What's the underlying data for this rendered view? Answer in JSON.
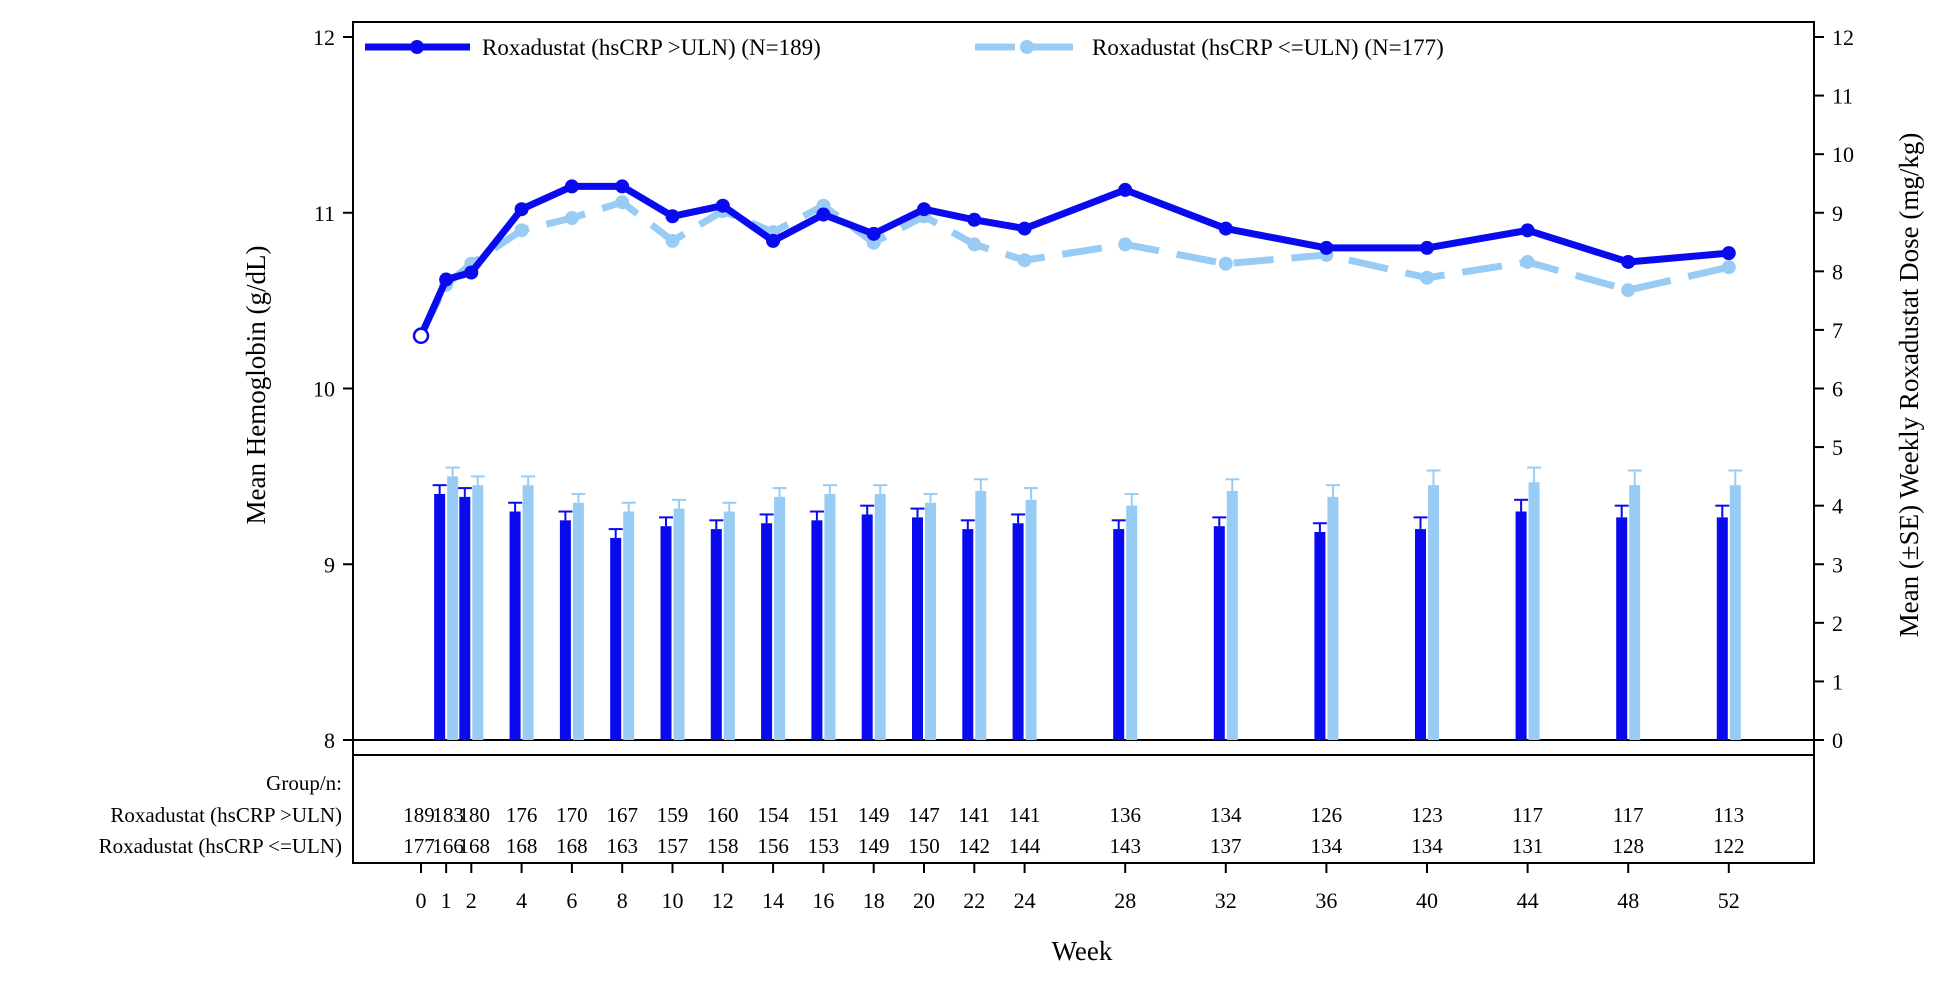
{
  "chart_data": {
    "type": "line",
    "combined_with": "bar",
    "x": [
      0,
      1,
      2,
      4,
      6,
      8,
      10,
      12,
      14,
      16,
      18,
      20,
      22,
      24,
      28,
      32,
      36,
      40,
      44,
      48,
      52
    ],
    "x_tick_labels": [
      "0",
      "1",
      "2",
      "4",
      "6",
      "8",
      "10",
      "12",
      "14",
      "16",
      "18",
      "20",
      "22",
      "24",
      "28",
      "32",
      "36",
      "40",
      "44",
      "48",
      "52"
    ],
    "xlabel": "Week",
    "ylabel_left": "Mean Hemoglobin (g/dL)",
    "ylabel_right": "Mean (±SE) Weekly Roxadustat Dose (mg/kg)",
    "ylim_left": [
      8,
      12
    ],
    "ylim_right": [
      0,
      12
    ],
    "y_ticks_left": [
      "8",
      "9",
      "10",
      "11",
      "12"
    ],
    "y_ticks_right": [
      "0",
      "1",
      "2",
      "3",
      "4",
      "5",
      "6",
      "7",
      "8",
      "9",
      "10",
      "11",
      "12"
    ],
    "legend_position": "top",
    "series": [
      {
        "name": "Roxadustat (hsCRP >ULN) (N=189)",
        "color": "#0a0aee",
        "line_style": "solid",
        "hemoglobin": [
          10.3,
          10.62,
          10.66,
          11.02,
          11.15,
          11.15,
          10.98,
          11.04,
          10.84,
          10.99,
          10.88,
          11.02,
          10.96,
          10.91,
          11.13,
          10.91,
          10.8,
          10.8,
          10.9,
          10.72,
          10.77
        ],
        "dose": [
          null,
          4.2,
          4.15,
          3.9,
          3.75,
          3.45,
          3.65,
          3.6,
          3.7,
          3.75,
          3.85,
          3.8,
          3.6,
          3.7,
          3.6,
          3.65,
          3.55,
          3.6,
          3.9,
          3.8,
          3.8
        ],
        "dose_se": [
          null,
          0.15,
          0.15,
          0.15,
          0.15,
          0.15,
          0.15,
          0.15,
          0.15,
          0.15,
          0.15,
          0.15,
          0.15,
          0.15,
          0.15,
          0.15,
          0.15,
          0.2,
          0.2,
          0.2,
          0.2
        ],
        "n": [
          "189",
          "183",
          "180",
          "176",
          "170",
          "167",
          "159",
          "160",
          "154",
          "151",
          "149",
          "147",
          "141",
          "141",
          "136",
          "134",
          "126",
          "123",
          "117",
          "117",
          "113"
        ]
      },
      {
        "name": "Roxadustat (hsCRP <=ULN) (N=177)",
        "color": "#99ccf4",
        "line_style": "dashed",
        "hemoglobin": [
          10.31,
          10.59,
          10.71,
          10.9,
          10.97,
          11.06,
          10.84,
          11.01,
          10.89,
          11.04,
          10.83,
          10.98,
          10.82,
          10.73,
          10.82,
          10.71,
          10.76,
          10.63,
          10.72,
          10.56,
          10.69
        ],
        "dose": [
          null,
          4.5,
          4.35,
          4.35,
          4.05,
          3.9,
          3.95,
          3.9,
          4.15,
          4.2,
          4.2,
          4.05,
          4.25,
          4.1,
          4.0,
          4.25,
          4.15,
          4.35,
          4.4,
          4.35,
          4.35
        ],
        "dose_se": [
          null,
          0.15,
          0.15,
          0.15,
          0.15,
          0.15,
          0.15,
          0.15,
          0.15,
          0.15,
          0.15,
          0.15,
          0.2,
          0.2,
          0.2,
          0.2,
          0.2,
          0.25,
          0.25,
          0.25,
          0.25
        ],
        "n": [
          "177",
          "166",
          "168",
          "168",
          "168",
          "163",
          "157",
          "158",
          "156",
          "153",
          "149",
          "150",
          "142",
          "144",
          "143",
          "137",
          "134",
          "134",
          "131",
          "128",
          "122"
        ]
      }
    ],
    "table": {
      "header": "Group/n:",
      "row_labels": [
        "Roxadustat (hsCRP >ULN)",
        "Roxadustat (hsCRP <=ULN)"
      ]
    }
  }
}
